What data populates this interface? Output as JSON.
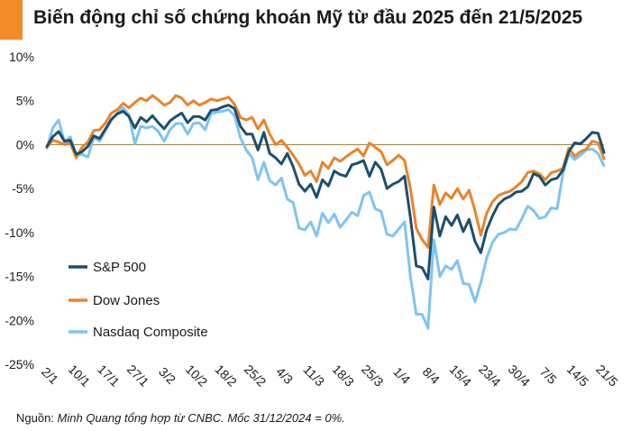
{
  "title": "Biến động chỉ số chứng khoán Mỹ từ đầu 2025 đến 21/5/2025",
  "source_label": "Nguồn:",
  "source_text": "Minh Quang tổng hợp từ CNBC. Mốc 31/12/2024 = 0%.",
  "colors": {
    "sp500": "#1d4e6e",
    "dow": "#e8842a",
    "nasdaq": "#7fc4ef",
    "zero_line": "#9c8a4e",
    "accent": "#f28c28"
  },
  "chart_data": {
    "type": "line",
    "title": "Biến động chỉ số chứng khoán Mỹ từ đầu 2025 đến 21/5/2025",
    "xlabel": "",
    "ylabel": "",
    "ylim": [
      -25,
      10
    ],
    "y_ticks": [
      10,
      5,
      0,
      -5,
      -10,
      -15,
      -20,
      -25
    ],
    "y_tick_labels": [
      "10%",
      "5%",
      "0%",
      "-5%",
      "-10%",
      "-15%",
      "-20%",
      "-25%"
    ],
    "x_tick_labels": [
      "2/1",
      "10/1",
      "17/1",
      "27/1",
      "3/2",
      "10/2",
      "18/2",
      "25/2",
      "4/3",
      "11/3",
      "18/3",
      "25/3",
      "1/4",
      "8/4",
      "15/4",
      "23/4",
      "30/4",
      "7/5",
      "14/5",
      "21/5"
    ],
    "x_tick_index": [
      0,
      5,
      10,
      15,
      20,
      25,
      30,
      35,
      40,
      45,
      50,
      55,
      60,
      65,
      70,
      75,
      80,
      85,
      90,
      95
    ],
    "n_points": 96,
    "legend_position": "bottom-left",
    "series": [
      {
        "name": "S&P 500",
        "key": "sp500",
        "values": [
          -0.2,
          0.9,
          1.5,
          0.4,
          0.5,
          -1.1,
          -0.8,
          -0.2,
          1.0,
          0.7,
          1.8,
          2.9,
          3.5,
          3.8,
          3.2,
          1.9,
          3.1,
          2.6,
          3.3,
          2.5,
          1.8,
          2.7,
          3.2,
          3.6,
          2.5,
          3.2,
          3.2,
          2.8,
          3.9,
          4.0,
          4.3,
          4.5,
          4.1,
          2.1,
          1.2,
          1.2,
          -0.6,
          1.4,
          -1.0,
          -1.5,
          -2.2,
          -1.0,
          -2.5,
          -4.5,
          -5.3,
          -4.5,
          -6.0,
          -4.0,
          -4.7,
          -3.0,
          -3.4,
          -3.6,
          -2.3,
          -2.1,
          -1.8,
          -3.6,
          -2.0,
          -2.8,
          -5.0,
          -4.5,
          -4.2,
          -3.6,
          -8.3,
          -13.8,
          -14.0,
          -15.3,
          -7.1,
          -10.4,
          -8.2,
          -9.2,
          -8.0,
          -9.9,
          -8.5,
          -11.0,
          -12.3,
          -9.7,
          -8.1,
          -6.8,
          -6.2,
          -5.9,
          -5.4,
          -5.3,
          -4.8,
          -3.3,
          -3.6,
          -4.6,
          -4.0,
          -3.8,
          -2.9,
          -0.8,
          0.2,
          0.1,
          0.7,
          1.4,
          1.3,
          -0.9
        ]
      },
      {
        "name": "Dow Jones",
        "key": "dow",
        "values": [
          -0.3,
          0.5,
          0.3,
          0.0,
          0.2,
          -1.5,
          -0.3,
          0.3,
          1.6,
          1.7,
          2.5,
          3.6,
          4.0,
          4.7,
          4.2,
          4.8,
          5.3,
          5.0,
          5.6,
          5.1,
          4.5,
          4.8,
          5.6,
          5.3,
          4.5,
          5.0,
          4.5,
          4.8,
          5.2,
          5.0,
          5.2,
          5.4,
          4.6,
          3.1,
          2.8,
          3.1,
          1.8,
          2.8,
          1.2,
          0.0,
          0.5,
          -0.3,
          -1.2,
          -2.2,
          -3.5,
          -3.0,
          -4.2,
          -2.0,
          -2.7,
          -1.5,
          -1.9,
          -1.4,
          -0.9,
          -0.5,
          -1.3,
          0.2,
          -0.3,
          -0.8,
          -2.3,
          -1.8,
          -1.2,
          -1.8,
          -5.0,
          -9.5,
          -10.8,
          -11.7,
          -4.6,
          -6.8,
          -5.5,
          -6.1,
          -5.0,
          -6.2,
          -5.2,
          -7.5,
          -10.3,
          -7.8,
          -6.5,
          -5.8,
          -5.5,
          -5.3,
          -4.8,
          -4.2,
          -3.2,
          -3.0,
          -3.3,
          -4.0,
          -3.2,
          -3.0,
          -2.7,
          -0.4,
          -1.3,
          -0.8,
          -0.5,
          0.4,
          0.2,
          -1.6
        ]
      },
      {
        "name": "Nasdaq Composite",
        "key": "nasdaq",
        "values": [
          -0.4,
          1.9,
          2.8,
          0.3,
          0.9,
          -1.3,
          -1.1,
          -1.4,
          0.8,
          0.4,
          1.6,
          2.8,
          3.6,
          4.2,
          3.4,
          0.1,
          2.1,
          1.9,
          2.1,
          1.5,
          0.4,
          1.7,
          2.4,
          2.4,
          1.2,
          2.4,
          2.5,
          1.7,
          3.5,
          3.7,
          3.8,
          4.0,
          3.3,
          0.8,
          -0.6,
          -1.5,
          -4.0,
          -2.0,
          -4.1,
          -4.6,
          -3.8,
          -6.2,
          -6.6,
          -9.5,
          -9.7,
          -8.8,
          -10.4,
          -7.8,
          -8.9,
          -7.9,
          -9.4,
          -8.6,
          -7.7,
          -8.1,
          -5.8,
          -5.4,
          -7.3,
          -7.6,
          -10.2,
          -10.4,
          -9.6,
          -8.8,
          -15.0,
          -19.3,
          -19.3,
          -20.9,
          -10.8,
          -15.0,
          -13.8,
          -14.2,
          -13.2,
          -15.8,
          -15.9,
          -17.9,
          -15.7,
          -12.9,
          -11.1,
          -10.2,
          -10.0,
          -9.6,
          -9.7,
          -8.4,
          -7.0,
          -7.5,
          -8.4,
          -8.2,
          -7.2,
          -7.3,
          -3.3,
          -1.0,
          -1.7,
          -1.2,
          -0.6,
          -0.5,
          -1.0,
          -2.4
        ]
      }
    ]
  }
}
